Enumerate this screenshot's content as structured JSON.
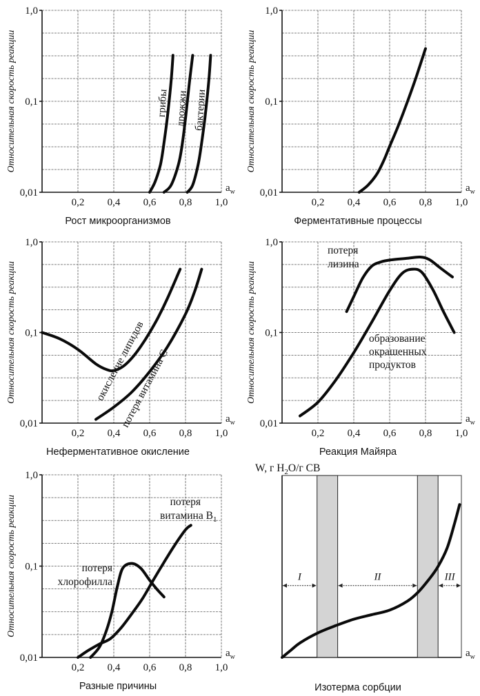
{
  "figure": {
    "axis_symbol": "a",
    "axis_symbol_sub": "w",
    "y_axis_label": "Относительная скорость реакции"
  },
  "chart_data": [
    {
      "type": "line",
      "id": "microorganisms",
      "title": "Рост микроорганизмов",
      "xlabel": "aw",
      "ylabel": "Относительная скорость реакции",
      "xlim": [
        0,
        1.0
      ],
      "ylim": [
        0.01,
        1.0
      ],
      "yscale": "log",
      "xticks": [
        "0,2",
        "0,4",
        "0,6",
        "0,8",
        "1,0"
      ],
      "xtick_values": [
        0.2,
        0.4,
        0.6,
        0.8,
        1.0
      ],
      "yticks": [
        "1,0",
        "0,1",
        "0,01"
      ],
      "ytick_values": [
        1.0,
        0.1,
        0.01
      ],
      "grid": true,
      "series": [
        {
          "name": "грибы",
          "x": [
            0.6,
            0.63,
            0.66,
            0.68,
            0.7,
            0.72,
            0.73
          ],
          "y": [
            0.01,
            0.013,
            0.02,
            0.035,
            0.07,
            0.17,
            0.32
          ]
        },
        {
          "name": "дрожжи",
          "x": [
            0.68,
            0.72,
            0.76,
            0.78,
            0.8,
            0.82,
            0.84
          ],
          "y": [
            0.01,
            0.012,
            0.02,
            0.032,
            0.065,
            0.15,
            0.32
          ]
        },
        {
          "name": "бактерии",
          "x": [
            0.81,
            0.84,
            0.87,
            0.89,
            0.91,
            0.93,
            0.94
          ],
          "y": [
            0.01,
            0.012,
            0.02,
            0.035,
            0.07,
            0.17,
            0.32
          ]
        }
      ]
    },
    {
      "type": "line",
      "id": "enzymatic",
      "title": "Ферментативные процессы",
      "xlabel": "aw",
      "ylabel": "Относительная скорость реакции",
      "xlim": [
        0,
        1.0
      ],
      "ylim": [
        0.01,
        1.0
      ],
      "yscale": "log",
      "xticks": [
        "0,2",
        "0,4",
        "0,6",
        "0,8",
        "1,0"
      ],
      "xtick_values": [
        0.2,
        0.4,
        0.6,
        0.8,
        1.0
      ],
      "yticks": [
        "1,0",
        "0,1",
        "0,01"
      ],
      "ytick_values": [
        1.0,
        0.1,
        0.01
      ],
      "grid": true,
      "series": [
        {
          "name": "ферментативные процессы",
          "x": [
            0.43,
            0.48,
            0.53,
            0.57,
            0.6,
            0.65,
            0.7,
            0.75,
            0.8
          ],
          "y": [
            0.01,
            0.012,
            0.016,
            0.023,
            0.032,
            0.055,
            0.1,
            0.19,
            0.38
          ]
        }
      ]
    },
    {
      "type": "line",
      "id": "nonenzymatic-oxidation",
      "title": "Неферментативное окисление",
      "xlabel": "aw",
      "ylabel": "Относительная скорость реакции",
      "xlim": [
        0,
        1.0
      ],
      "ylim": [
        0.01,
        1.0
      ],
      "yscale": "log",
      "xticks": [
        "0,2",
        "0,4",
        "0,6",
        "0,8",
        "1,0"
      ],
      "xtick_values": [
        0.2,
        0.4,
        0.6,
        0.8,
        1.0
      ],
      "yticks": [
        "1,0",
        "0,1",
        "0,01"
      ],
      "ytick_values": [
        1.0,
        0.1,
        0.01
      ],
      "grid": true,
      "series": [
        {
          "name": "окисление липидов",
          "x": [
            0.0,
            0.1,
            0.2,
            0.3,
            0.36,
            0.4,
            0.45,
            0.5,
            0.55,
            0.6,
            0.65,
            0.7,
            0.77
          ],
          "y": [
            0.1,
            0.085,
            0.065,
            0.045,
            0.039,
            0.038,
            0.042,
            0.052,
            0.07,
            0.1,
            0.15,
            0.24,
            0.5
          ]
        },
        {
          "name": "потеря витамина C",
          "x": [
            0.3,
            0.4,
            0.5,
            0.6,
            0.7,
            0.8,
            0.85,
            0.89
          ],
          "y": [
            0.011,
            0.015,
            0.022,
            0.037,
            0.07,
            0.16,
            0.28,
            0.5
          ]
        }
      ]
    },
    {
      "type": "line",
      "id": "maillard",
      "title": "Реакция Майяра",
      "xlabel": "aw",
      "ylabel": "Относительная скорость реакции",
      "xlim": [
        0,
        1.0
      ],
      "ylim": [
        0.01,
        1.0
      ],
      "yscale": "log",
      "xticks": [
        "0,2",
        "0,4",
        "0,6",
        "0,8",
        "1,0"
      ],
      "xtick_values": [
        0.2,
        0.4,
        0.6,
        0.8,
        1.0
      ],
      "yticks": [
        "1,0",
        "0,1",
        "0,01"
      ],
      "ytick_values": [
        1.0,
        0.1,
        0.01
      ],
      "grid": true,
      "series": [
        {
          "name": "потеря лизина",
          "x": [
            0.36,
            0.4,
            0.45,
            0.5,
            0.55,
            0.6,
            0.7,
            0.77,
            0.82,
            0.88,
            0.95
          ],
          "y": [
            0.17,
            0.25,
            0.4,
            0.54,
            0.6,
            0.63,
            0.66,
            0.68,
            0.64,
            0.52,
            0.41
          ]
        },
        {
          "name": "образование окрашенных продуктов",
          "x": [
            0.1,
            0.2,
            0.3,
            0.4,
            0.5,
            0.6,
            0.67,
            0.73,
            0.78,
            0.84,
            0.9,
            0.96
          ],
          "y": [
            0.012,
            0.017,
            0.03,
            0.06,
            0.13,
            0.29,
            0.45,
            0.5,
            0.46,
            0.3,
            0.17,
            0.1
          ]
        }
      ]
    },
    {
      "type": "line",
      "id": "various",
      "title": "Разные причины",
      "xlabel": "aw",
      "ylabel": "Относительная скорость реакции",
      "xlim": [
        0,
        1.0
      ],
      "ylim": [
        0.01,
        1.0
      ],
      "yscale": "log",
      "xticks": [
        "0,2",
        "0,4",
        "0,6",
        "0,8",
        "1,0"
      ],
      "xtick_values": [
        0.2,
        0.4,
        0.6,
        0.8,
        1.0
      ],
      "yticks": [
        "1,0",
        "0,1",
        "0,01"
      ],
      "ytick_values": [
        1.0,
        0.1,
        0.01
      ],
      "grid": true,
      "series": [
        {
          "name": "потеря хлорофилла",
          "x": [
            0.27,
            0.32,
            0.36,
            0.39,
            0.42,
            0.45,
            0.5,
            0.55,
            0.6,
            0.64,
            0.68
          ],
          "y": [
            0.01,
            0.013,
            0.02,
            0.032,
            0.06,
            0.095,
            0.107,
            0.095,
            0.07,
            0.056,
            0.046
          ]
        },
        {
          "name": "потеря витамина B1",
          "x": [
            0.2,
            0.26,
            0.32,
            0.38,
            0.44,
            0.5,
            0.56,
            0.62,
            0.68,
            0.74,
            0.8,
            0.83
          ],
          "y": [
            0.01,
            0.012,
            0.014,
            0.016,
            0.021,
            0.03,
            0.044,
            0.07,
            0.11,
            0.17,
            0.25,
            0.28
          ]
        }
      ],
      "annotations": [
        {
          "text_lines": [
            "потеря",
            "хлорофилла"
          ]
        },
        {
          "text_lines": [
            "потеря",
            "витамина B"
          ],
          "subscript": "1"
        }
      ]
    },
    {
      "type": "line",
      "id": "sorption-isotherm",
      "title": "Изотерма сорбции",
      "ylabel": "W, г H2O/г СВ",
      "ylabel_parts": [
        "W, г H",
        "2",
        "O/г СВ"
      ],
      "xlabel": "aw",
      "xlim": [
        0,
        1.0
      ],
      "ylim": [
        0,
        1.0
      ],
      "grid": false,
      "regions": [
        {
          "label": "I",
          "from": 0.0,
          "to": 0.195
        },
        {
          "label": "II",
          "from": 0.31,
          "to": 0.755
        },
        {
          "label": "III",
          "from": 0.87,
          "to": 1.0
        }
      ],
      "transition_bands": [
        {
          "from": 0.195,
          "to": 0.31
        },
        {
          "from": 0.755,
          "to": 0.87
        }
      ],
      "series": [
        {
          "name": "изотерма сорбции",
          "x": [
            0.0,
            0.05,
            0.1,
            0.2,
            0.3,
            0.4,
            0.5,
            0.6,
            0.7,
            0.76,
            0.82,
            0.87,
            0.92,
            0.96,
            0.99
          ],
          "y": [
            0.0,
            0.04,
            0.08,
            0.135,
            0.175,
            0.21,
            0.235,
            0.26,
            0.31,
            0.36,
            0.43,
            0.5,
            0.6,
            0.73,
            0.84
          ]
        }
      ]
    }
  ]
}
